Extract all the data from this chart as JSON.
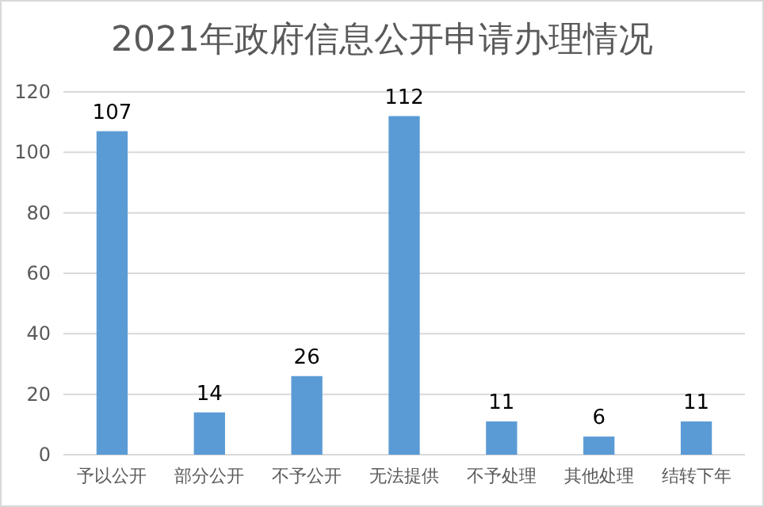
{
  "chart_data": {
    "type": "bar",
    "title": "2021年政府信息公开申请办理情况",
    "categories": [
      "予以公开",
      "部分公开",
      "不予公开",
      "无法提供",
      "不予处理",
      "其他处理",
      "结转下年"
    ],
    "values": [
      107,
      14,
      26,
      112,
      11,
      6,
      11
    ],
    "color": "#5b9bd5",
    "ylim": [
      0,
      120
    ],
    "yticks": [
      0,
      20,
      40,
      60,
      80,
      100,
      120
    ],
    "grid": "y",
    "data_labels": true
  }
}
